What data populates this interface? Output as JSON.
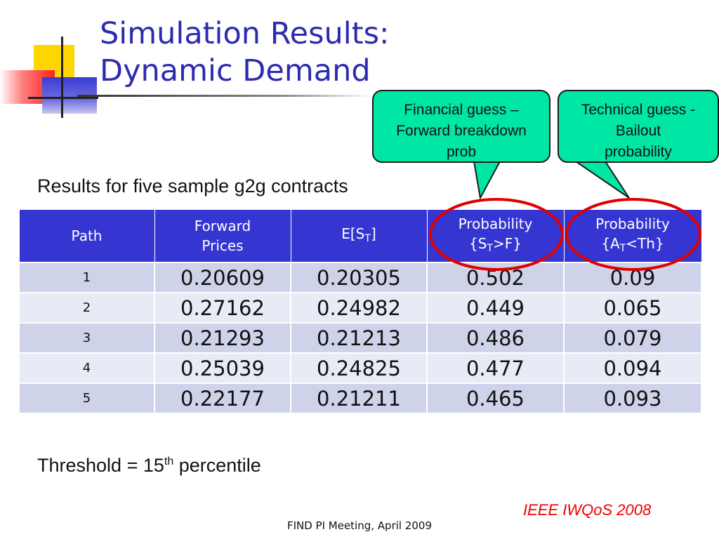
{
  "title": {
    "line1": "Simulation Results:",
    "line2": "Dynamic Demand"
  },
  "callouts": [
    {
      "line1": "Financial guess –",
      "line2": "Forward breakdown",
      "line3": "prob"
    },
    {
      "line1": "Technical guess -",
      "line2": "Bailout",
      "line3": "probability"
    }
  ],
  "subtitle": "Results for five sample g2g contracts",
  "table": {
    "headers": {
      "path": "Path",
      "forward_line1": "Forward",
      "forward_line2": "Prices",
      "expect_prefix": "E[S",
      "expect_sub": "T",
      "expect_suffix": "]",
      "prob_label": "Probability",
      "prob1_prefix": "{S",
      "prob1_sub": "T",
      "prob1_suffix": ">F}",
      "prob2_prefix": "{A",
      "prob2_sub": "T",
      "prob2_suffix": "<Th}"
    },
    "rows": [
      {
        "path": "1",
        "forward": "0.20609",
        "expected": "0.20305",
        "prob_st_gt_f": "0.502",
        "prob_at_lt_th": "0.09"
      },
      {
        "path": "2",
        "forward": "0.27162",
        "expected": "0.24982",
        "prob_st_gt_f": "0.449",
        "prob_at_lt_th": "0.065"
      },
      {
        "path": "3",
        "forward": "0.21293",
        "expected": "0.21213",
        "prob_st_gt_f": "0.486",
        "prob_at_lt_th": "0.079"
      },
      {
        "path": "4",
        "forward": "0.25039",
        "expected": "0.24825",
        "prob_st_gt_f": "0.477",
        "prob_at_lt_th": "0.094"
      },
      {
        "path": "5",
        "forward": "0.22177",
        "expected": "0.21211",
        "prob_st_gt_f": "0.465",
        "prob_at_lt_th": "0.093"
      }
    ]
  },
  "threshold": {
    "prefix": "Threshold = 15",
    "sup": "th",
    "suffix": " percentile"
  },
  "citation": "IEEE IWQoS 2008",
  "footer": "FIND PI Meeting, April 2009",
  "colors": {
    "title": "#2b2bb0",
    "table_header": "#3535d2",
    "callout_fill": "#00e6a4",
    "highlight_oval": "#e00000",
    "citation": "#ee0000"
  }
}
